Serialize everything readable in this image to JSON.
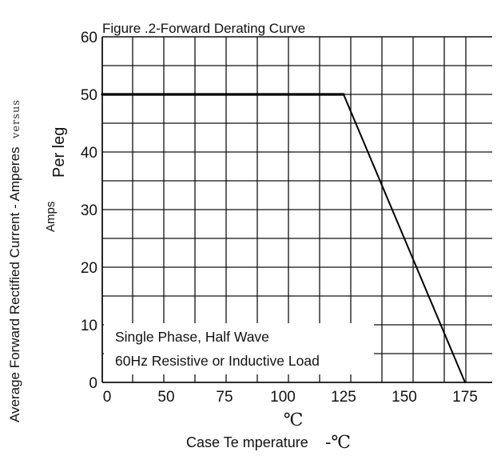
{
  "chart_data": {
    "type": "line",
    "title": "Figure .2-Forward Derating Curve",
    "xlabel": "Case Te mperature",
    "xlabel_unit": "-℃",
    "x_unit_symbol": "℃",
    "ylabel_main": "Average Forward Rectified Current  -  Amperes",
    "ylabel_versus": "versus",
    "ylabel_amps": "Amps",
    "ylabel_perleg": "Per leg",
    "x_ticks": [
      "0",
      "50",
      "75",
      "100",
      "125",
      "150",
      "175"
    ],
    "y_ticks": [
      "0",
      "10",
      "20",
      "30",
      "40",
      "50",
      "60"
    ],
    "ylim": [
      0,
      60
    ],
    "grid": true,
    "series": [
      {
        "x": [
          0,
          125,
          175
        ],
        "y": [
          50,
          50,
          0
        ]
      }
    ],
    "annotation": {
      "line1": "Single Phase, Half Wave",
      "line2": "60Hz Resistive or Inductive Load"
    }
  }
}
